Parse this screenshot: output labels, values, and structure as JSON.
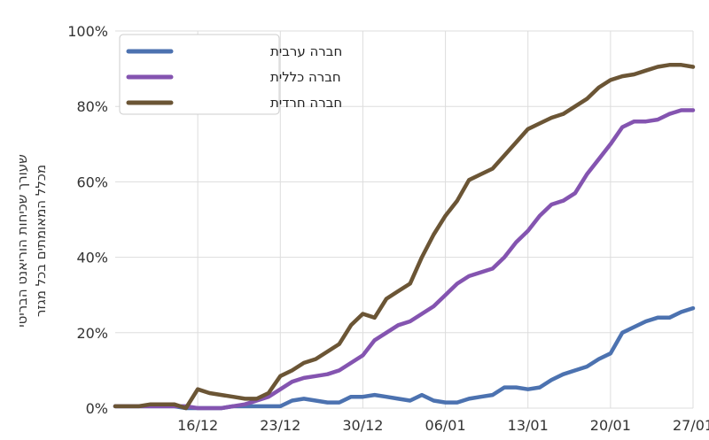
{
  "chart_data": {
    "type": "line",
    "title": "",
    "xlabel": "",
    "ylabel": [
      "שעורך שכיחות הוריאנט הבריטי",
      "מכלל המאומתים בכל מגזר"
    ],
    "x": [
      "09/12",
      "10/12",
      "11/12",
      "12/12",
      "13/12",
      "14/12",
      "15/12",
      "16/12",
      "17/12",
      "18/12",
      "19/12",
      "20/12",
      "21/12",
      "22/12",
      "23/12",
      "24/12",
      "25/12",
      "26/12",
      "27/12",
      "28/12",
      "29/12",
      "30/12",
      "31/12",
      "01/01",
      "02/01",
      "03/01",
      "04/01",
      "05/01",
      "06/01",
      "07/01",
      "08/01",
      "09/01",
      "10/01",
      "11/01",
      "12/01",
      "13/01",
      "14/01",
      "15/01",
      "16/01",
      "17/01",
      "18/01",
      "19/01",
      "20/01",
      "21/01",
      "22/01",
      "23/01",
      "24/01",
      "25/01",
      "26/01",
      "27/01"
    ],
    "x_ticks": [
      "16/12",
      "23/12",
      "30/12",
      "06/01",
      "13/01",
      "20/01",
      "27/01"
    ],
    "ylim": [
      0,
      100
    ],
    "y_ticks": [
      "0%",
      "20%",
      "40%",
      "60%",
      "80%",
      "100%"
    ],
    "grid": true,
    "legend_position": "top-left",
    "series": [
      {
        "name": "חברה ערבית",
        "color": "#4c72b0",
        "values": [
          0.5,
          0.5,
          0.5,
          0.5,
          0.5,
          0.5,
          0,
          0,
          0,
          0,
          0.5,
          0.5,
          0.5,
          0.5,
          0.5,
          2,
          2.5,
          2,
          1.5,
          1.5,
          3,
          3,
          3.5,
          3,
          2.5,
          2,
          3.5,
          2,
          1.5,
          1.5,
          2.5,
          3,
          3.5,
          5.5,
          5.5,
          5,
          5.5,
          7.5,
          9,
          10,
          11,
          13,
          14.5,
          20,
          21.5,
          23,
          24,
          24,
          25.5,
          26.5
        ]
      },
      {
        "name": "חברה כללית",
        "color": "#8454b0",
        "values": [
          0.5,
          0.5,
          0.5,
          0.5,
          0.5,
          0.5,
          0.5,
          0,
          0,
          0,
          0.5,
          1,
          2,
          3,
          5,
          7,
          8,
          8.5,
          9,
          10,
          12,
          14,
          18,
          20,
          22,
          23,
          25,
          27,
          30,
          33,
          35,
          36,
          37,
          40,
          44,
          47,
          51,
          54,
          55,
          57,
          62,
          66,
          70,
          74.5,
          76,
          76,
          76.5,
          78,
          79,
          79
        ]
      },
      {
        "name": "חברה חרדית",
        "color": "#6b5535",
        "values": [
          0.5,
          0.5,
          0.5,
          1,
          1,
          1,
          0,
          5,
          4,
          3.5,
          3,
          2.5,
          2.5,
          4,
          8.5,
          10,
          12,
          13,
          15,
          17,
          22,
          25,
          24,
          29,
          31,
          33,
          40,
          46,
          51,
          55,
          60.5,
          62,
          63.5,
          67,
          70.5,
          74,
          75.5,
          77,
          78,
          80,
          82,
          85,
          87,
          88,
          88.5,
          89.5,
          90.5,
          91,
          91,
          90.5
        ]
      }
    ]
  }
}
